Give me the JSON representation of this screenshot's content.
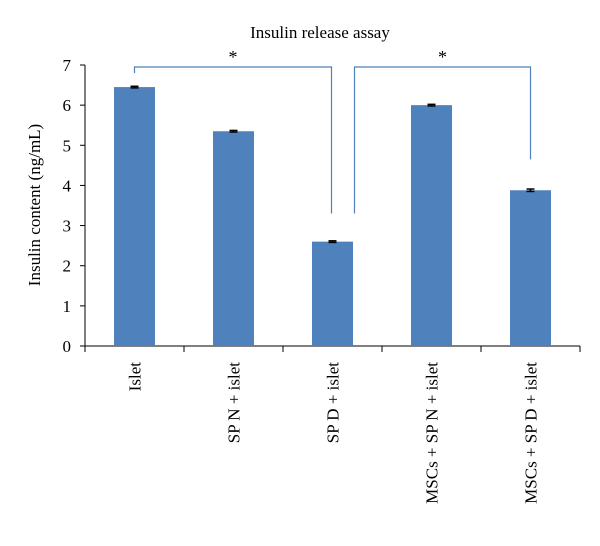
{
  "chart_data": {
    "type": "bar",
    "title": "Insulin release assay",
    "xlabel": "",
    "ylabel": "Insulin content (ng/mL)",
    "ylim": [
      0,
      7
    ],
    "yticks": [
      0,
      1,
      2,
      3,
      4,
      5,
      6,
      7
    ],
    "categories": [
      "Islet",
      "SP N + islet",
      "SP D + islet",
      "MSCs + SP N + islet",
      "MSCs + SP D + islet"
    ],
    "values": [
      6.45,
      5.35,
      2.6,
      6.0,
      3.88
    ],
    "errors": [
      0.02,
      0.02,
      0.02,
      0.02,
      0.03
    ],
    "bar_color": "#4f81bd",
    "bracket_color": "#4f81bd",
    "grid": false,
    "significance": [
      {
        "from": 0,
        "to": 2,
        "label": "*"
      },
      {
        "from": 2,
        "to": 4,
        "label": "*"
      }
    ]
  }
}
